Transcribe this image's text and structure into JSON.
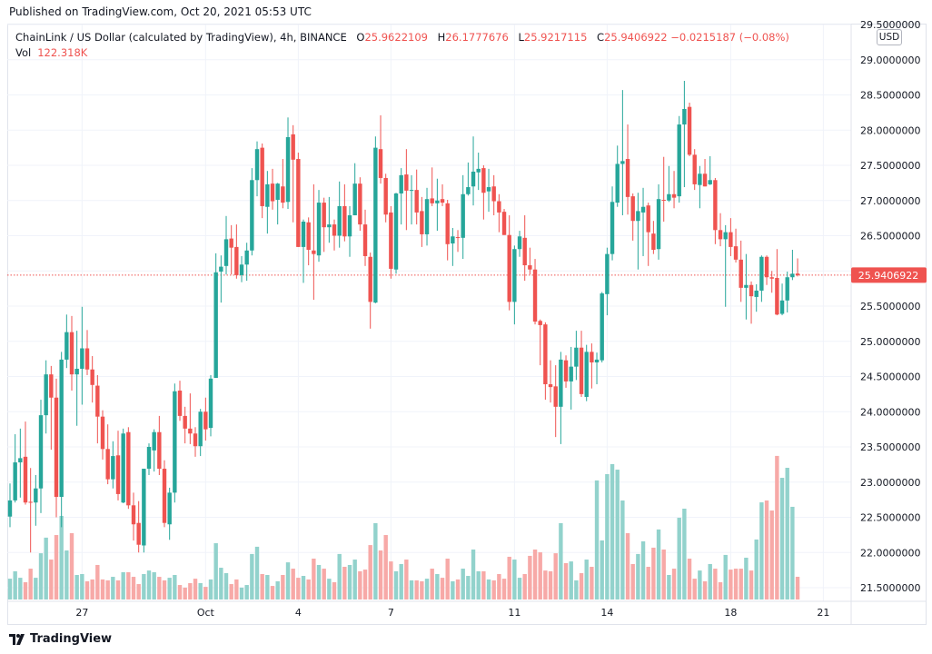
{
  "header": {
    "published": "Published on TradingView.com, Oct 20, 2021 05:53 UTC"
  },
  "legend": {
    "symbol": "ChainLink / US Dollar (calculated by TradingView), 4h, BINANCE",
    "o_label": "O",
    "o_value": "25.9622109",
    "h_label": "H",
    "h_value": "26.1777676",
    "l_label": "L",
    "l_value": "25.9217115",
    "c_label": "C",
    "c_value": "25.9406922",
    "change": "−0.0215187 (−0.08%)",
    "vol_label": "Vol",
    "vol_value": "122.318K"
  },
  "currency": "USD",
  "footer": {
    "brand": "TradingView"
  },
  "colors": {
    "up": "#26a69a",
    "down": "#ef5350",
    "up_volume": "#92d2cc",
    "down_volume": "#f7a9a7",
    "grid": "#f0f3fa",
    "last_price": "#ef5350"
  },
  "chart_data": {
    "type": "candlestick",
    "interval": "4h",
    "ylim": [
      21.5,
      29.5
    ],
    "grid": true,
    "y_ticks": [
      "29.5000000",
      "29.0000000",
      "28.5000000",
      "28.0000000",
      "27.5000000",
      "27.0000000",
      "26.5000000",
      "25.5000000",
      "25.0000000",
      "24.5000000",
      "24.0000000",
      "23.5000000",
      "23.0000000",
      "22.5000000",
      "22.0000000",
      "21.5000000"
    ],
    "x_ticks": [
      "27",
      "Oct",
      "4",
      "7",
      "11",
      "14",
      "18",
      "21"
    ],
    "last_price": 25.9406922,
    "last_price_label": "25.9406922",
    "volume_unit": "K",
    "candles_ohlc": [
      [
        22.51,
        22.98,
        22.36,
        22.74
      ],
      [
        22.74,
        23.68,
        22.71,
        23.28
      ],
      [
        23.28,
        23.76,
        22.78,
        23.34
      ],
      [
        23.36,
        23.86,
        22.68,
        22.71
      ],
      [
        22.72,
        23.2,
        22.0,
        22.71
      ],
      [
        22.71,
        23.1,
        22.38,
        22.91
      ],
      [
        22.91,
        24.17,
        22.56,
        23.95
      ],
      [
        23.95,
        24.73,
        23.69,
        24.53
      ],
      [
        24.53,
        24.65,
        23.46,
        24.2
      ],
      [
        24.2,
        24.47,
        22.5,
        22.79
      ],
      [
        22.79,
        24.85,
        22.36,
        24.74
      ],
      [
        24.74,
        25.38,
        24.62,
        25.13
      ],
      [
        25.13,
        25.36,
        24.3,
        24.53
      ],
      [
        24.53,
        25.15,
        23.8,
        24.61
      ],
      [
        24.61,
        25.49,
        24.1,
        24.9
      ],
      [
        24.9,
        25.16,
        24.52,
        24.6
      ],
      [
        24.6,
        24.79,
        24.13,
        24.38
      ],
      [
        24.37,
        24.52,
        23.55,
        23.93
      ],
      [
        23.93,
        24.02,
        23.32,
        23.47
      ],
      [
        23.47,
        23.82,
        22.97,
        23.04
      ],
      [
        23.04,
        23.58,
        22.91,
        23.37
      ],
      [
        23.38,
        23.73,
        22.74,
        22.83
      ],
      [
        22.71,
        23.76,
        22.7,
        23.69
      ],
      [
        23.71,
        23.78,
        22.62,
        22.67
      ],
      [
        22.67,
        22.85,
        22.17,
        22.4
      ],
      [
        22.42,
        22.73,
        22.0,
        22.11
      ],
      [
        22.1,
        23.19,
        22.0,
        23.19
      ],
      [
        23.19,
        23.55,
        23.1,
        23.5
      ],
      [
        23.45,
        23.75,
        23.15,
        23.71
      ],
      [
        23.71,
        23.94,
        23.1,
        23.19
      ],
      [
        23.19,
        23.31,
        22.36,
        22.42
      ],
      [
        22.4,
        22.92,
        22.18,
        22.85
      ],
      [
        22.85,
        24.4,
        22.71,
        24.29
      ],
      [
        24.3,
        24.44,
        23.87,
        23.94
      ],
      [
        23.94,
        24.07,
        23.55,
        23.76
      ],
      [
        23.76,
        24.26,
        23.54,
        23.69
      ],
      [
        23.69,
        23.78,
        23.36,
        23.51
      ],
      [
        23.51,
        24.04,
        23.37,
        24.0
      ],
      [
        24.0,
        24.2,
        23.59,
        23.75
      ],
      [
        23.77,
        24.52,
        23.65,
        24.47
      ],
      [
        24.48,
        26.25,
        24.48,
        25.98
      ],
      [
        25.99,
        26.22,
        25.55,
        26.06
      ],
      [
        26.07,
        26.78,
        25.95,
        26.45
      ],
      [
        26.46,
        26.65,
        25.95,
        26.33
      ],
      [
        26.34,
        26.66,
        25.89,
        25.94
      ],
      [
        25.94,
        26.21,
        25.84,
        26.09
      ],
      [
        26.09,
        26.4,
        25.86,
        26.29
      ],
      [
        26.29,
        27.46,
        26.22,
        27.29
      ],
      [
        27.29,
        27.84,
        27.06,
        27.73
      ],
      [
        27.75,
        27.81,
        26.75,
        26.92
      ],
      [
        26.91,
        27.42,
        26.53,
        27.23
      ],
      [
        27.24,
        27.45,
        26.87,
        26.99
      ],
      [
        27.01,
        27.25,
        26.66,
        27.24
      ],
      [
        27.2,
        27.59,
        26.89,
        26.97
      ],
      [
        26.98,
        28.18,
        26.88,
        27.9
      ],
      [
        27.94,
        28.07,
        26.69,
        27.58
      ],
      [
        27.59,
        27.68,
        26.34,
        26.34
      ],
      [
        26.34,
        26.73,
        25.83,
        26.7
      ],
      [
        26.69,
        26.76,
        26.08,
        26.3
      ],
      [
        26.29,
        27.23,
        25.59,
        26.24
      ],
      [
        26.22,
        27.15,
        26.13,
        26.97
      ],
      [
        26.97,
        27.04,
        26.27,
        26.62
      ],
      [
        26.62,
        27.05,
        26.4,
        26.66
      ],
      [
        26.66,
        26.73,
        26.29,
        26.5
      ],
      [
        26.5,
        27.27,
        26.33,
        26.92
      ],
      [
        26.92,
        27.23,
        26.42,
        26.49
      ],
      [
        26.49,
        26.92,
        26.2,
        26.79
      ],
      [
        26.79,
        27.53,
        26.79,
        27.24
      ],
      [
        27.24,
        27.33,
        26.57,
        26.66
      ],
      [
        26.66,
        26.87,
        26.07,
        26.21
      ],
      [
        26.2,
        26.26,
        25.18,
        25.56
      ],
      [
        25.55,
        27.91,
        25.54,
        27.75
      ],
      [
        27.73,
        28.21,
        27.24,
        27.32
      ],
      [
        27.32,
        27.38,
        26.69,
        26.8
      ],
      [
        26.83,
        26.92,
        25.89,
        26.03
      ],
      [
        26.02,
        27.11,
        25.96,
        27.1
      ],
      [
        27.1,
        27.46,
        26.66,
        27.36
      ],
      [
        27.37,
        27.73,
        26.58,
        27.14
      ],
      [
        27.14,
        27.36,
        26.66,
        27.15
      ],
      [
        27.15,
        27.44,
        26.66,
        26.83
      ],
      [
        26.85,
        27.05,
        26.34,
        26.52
      ],
      [
        26.52,
        27.18,
        26.36,
        27.02
      ],
      [
        27.03,
        27.47,
        26.92,
        26.96
      ],
      [
        26.96,
        27.31,
        26.57,
        27.0
      ],
      [
        27.02,
        27.23,
        26.92,
        26.97
      ],
      [
        26.96,
        27.01,
        26.15,
        26.38
      ],
      [
        26.39,
        26.61,
        26.07,
        26.49
      ],
      [
        26.48,
        26.58,
        26.27,
        26.47
      ],
      [
        26.47,
        27.36,
        26.17,
        27.09
      ],
      [
        27.09,
        27.54,
        27.07,
        27.19
      ],
      [
        27.2,
        27.91,
        26.93,
        27.41
      ],
      [
        27.4,
        27.68,
        27.15,
        27.45
      ],
      [
        27.46,
        27.5,
        26.73,
        27.11
      ],
      [
        27.13,
        27.45,
        26.84,
        27.19
      ],
      [
        27.2,
        27.36,
        26.79,
        26.99
      ],
      [
        26.99,
        27.09,
        26.55,
        26.83
      ],
      [
        26.84,
        26.88,
        26.51,
        26.51
      ],
      [
        26.51,
        26.79,
        25.44,
        25.56
      ],
      [
        25.56,
        26.36,
        25.24,
        26.31
      ],
      [
        26.31,
        26.57,
        26.2,
        26.49
      ],
      [
        26.47,
        26.79,
        25.86,
        26.08
      ],
      [
        26.08,
        26.33,
        25.95,
        26.02
      ],
      [
        26.02,
        26.17,
        25.24,
        25.28
      ],
      [
        25.29,
        25.31,
        24.66,
        25.23
      ],
      [
        25.24,
        25.27,
        24.17,
        24.39
      ],
      [
        24.39,
        24.73,
        24.13,
        24.35
      ],
      [
        24.36,
        24.66,
        23.64,
        24.07
      ],
      [
        24.07,
        24.85,
        23.54,
        24.74
      ],
      [
        24.73,
        24.8,
        24.34,
        24.43
      ],
      [
        24.43,
        24.92,
        24.03,
        24.64
      ],
      [
        24.64,
        25.15,
        24.45,
        24.91
      ],
      [
        24.91,
        25.15,
        24.21,
        24.25
      ],
      [
        24.21,
        24.95,
        24.15,
        24.85
      ],
      [
        24.85,
        24.97,
        24.33,
        24.7
      ],
      [
        24.7,
        24.84,
        24.39,
        24.74
      ],
      [
        24.73,
        25.7,
        24.7,
        25.68
      ],
      [
        25.67,
        26.33,
        25.37,
        26.24
      ],
      [
        26.24,
        27.2,
        26.15,
        26.98
      ],
      [
        26.97,
        27.78,
        26.91,
        27.52
      ],
      [
        27.52,
        28.57,
        26.79,
        27.56
      ],
      [
        27.59,
        28.08,
        26.8,
        27.05
      ],
      [
        27.06,
        27.1,
        26.43,
        26.71
      ],
      [
        26.71,
        27.11,
        26.02,
        26.85
      ],
      [
        26.83,
        27.18,
        26.21,
        26.91
      ],
      [
        26.93,
        26.97,
        26.07,
        26.55
      ],
      [
        26.53,
        26.71,
        26.24,
        26.3
      ],
      [
        26.31,
        27.23,
        26.16,
        27.02
      ],
      [
        27.01,
        27.62,
        26.7,
        27.0
      ],
      [
        27.0,
        27.49,
        26.98,
        27.09
      ],
      [
        27.09,
        27.42,
        26.89,
        27.04
      ],
      [
        27.06,
        28.2,
        26.97,
        28.08
      ],
      [
        28.08,
        28.7,
        27.19,
        28.3
      ],
      [
        28.33,
        28.39,
        27.63,
        27.65
      ],
      [
        27.65,
        27.73,
        27.15,
        27.23
      ],
      [
        27.22,
        27.49,
        26.89,
        27.38
      ],
      [
        27.38,
        27.59,
        27.2,
        27.2
      ],
      [
        27.23,
        27.63,
        27.22,
        27.29
      ],
      [
        27.29,
        27.32,
        26.38,
        26.58
      ],
      [
        26.58,
        26.82,
        26.35,
        26.45
      ],
      [
        26.45,
        26.65,
        25.49,
        26.55
      ],
      [
        26.55,
        26.75,
        26.21,
        26.34
      ],
      [
        26.35,
        26.6,
        26.12,
        26.16
      ],
      [
        26.16,
        26.43,
        25.56,
        25.76
      ],
      [
        25.76,
        26.24,
        25.31,
        25.8
      ],
      [
        25.8,
        25.85,
        25.25,
        25.64
      ],
      [
        25.63,
        25.81,
        25.42,
        25.72
      ],
      [
        25.72,
        26.22,
        25.56,
        26.2
      ],
      [
        26.2,
        26.22,
        25.8,
        25.91
      ],
      [
        25.91,
        26.0,
        25.69,
        25.89
      ],
      [
        25.9,
        26.31,
        25.37,
        25.38
      ],
      [
        25.39,
        25.82,
        25.37,
        25.58
      ],
      [
        25.58,
        25.99,
        25.41,
        25.91
      ],
      [
        25.91,
        26.3,
        25.87,
        25.96
      ],
      [
        25.9622109,
        26.1777676,
        25.9217115,
        25.9406922
      ]
    ],
    "volume": [
      112,
      152,
      117,
      93,
      166,
      117,
      249,
      333,
      215,
      347,
      450,
      264,
      357,
      132,
      137,
      98,
      108,
      186,
      108,
      103,
      122,
      103,
      147,
      147,
      122,
      83,
      137,
      156,
      147,
      122,
      103,
      117,
      132,
      78,
      64,
      88,
      112,
      88,
      68,
      108,
      303,
      171,
      142,
      83,
      108,
      64,
      78,
      245,
      284,
      137,
      132,
      73,
      98,
      132,
      200,
      166,
      117,
      127,
      108,
      220,
      186,
      166,
      112,
      93,
      245,
      176,
      186,
      215,
      152,
      161,
      293,
      411,
      264,
      347,
      205,
      152,
      191,
      215,
      103,
      103,
      98,
      112,
      166,
      137,
      117,
      220,
      98,
      108,
      166,
      127,
      269,
      152,
      152,
      108,
      103,
      137,
      112,
      230,
      215,
      117,
      137,
      235,
      269,
      254,
      156,
      152,
      249,
      411,
      196,
      205,
      103,
      142,
      215,
      176,
      641,
      318,
      675,
      729,
      699,
      533,
      357,
      191,
      245,
      313,
      176,
      279,
      377,
      269,
      132,
      166,
      440,
      489,
      220,
      112,
      156,
      98,
      191,
      166,
      93,
      240,
      161,
      166,
      166,
      225,
      156,
      323,
      523,
      533,
      479,
      773,
      655,
      709,
      499,
      122.318
    ]
  }
}
